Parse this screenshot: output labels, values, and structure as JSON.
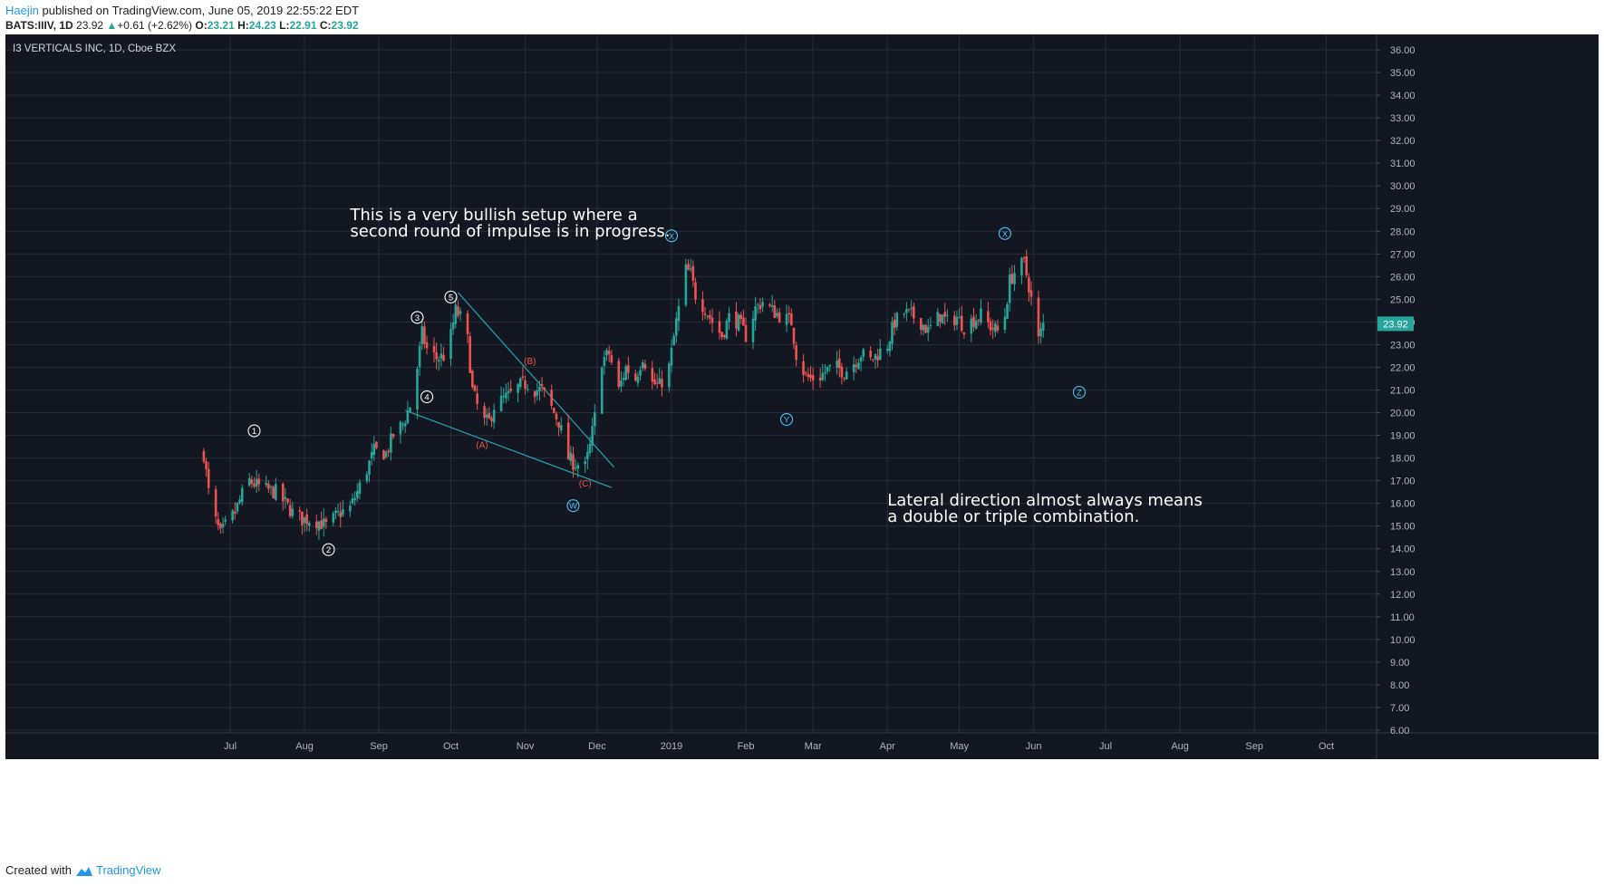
{
  "header": {
    "author": "Haejin",
    "published": "published on TradingView.com, June 05, 2019 22:55:22 EDT",
    "symbol": "BATS:IIIV, 1D",
    "last": "23.92",
    "up_arrow": "▲",
    "change": "+0.61 (+2.62%)",
    "o_label": "O:",
    "o_value": "23.21",
    "h_label": "H:",
    "h_value": "24.23",
    "l_label": "L:",
    "l_value": "22.91",
    "c_label": "C:",
    "c_value": "23.92"
  },
  "footer": {
    "created_with": "Created with",
    "brand": "TradingView"
  },
  "colors": {
    "background": "#131722",
    "grid": "#2a2e39",
    "up": "#26a69a",
    "down": "#ef5350",
    "label_text": "#b2b5be",
    "annotation_text": "#ffffff",
    "trendline": "#26a6b6",
    "wave_white": "#ffffff",
    "wave_red": "#ef5350",
    "wave_cyan": "#4fc3f7"
  },
  "chart_data": {
    "type": "candlestick",
    "instrument_label": "I3 VERTICALS INC, 1D, Cboe BZX",
    "y_axis": {
      "ticks": [
        "6.00",
        "7.00",
        "8.00",
        "9.00",
        "10.00",
        "11.00",
        "12.00",
        "13.00",
        "14.00",
        "15.00",
        "16.00",
        "17.00",
        "18.00",
        "19.00",
        "20.00",
        "21.00",
        "22.00",
        "23.00",
        "24.00",
        "25.00",
        "26.00",
        "27.00",
        "28.00",
        "29.00",
        "30.00",
        "31.00",
        "32.00",
        "33.00",
        "34.00",
        "35.00",
        "36.00"
      ],
      "range": [
        5.6,
        36.6
      ],
      "last_price_label": "23.92"
    },
    "x_axis": {
      "ticks": [
        "Jul",
        "Aug",
        "Sep",
        "Oct",
        "Nov",
        "Dec",
        "2019",
        "Feb",
        "Mar",
        "Apr",
        "May",
        "Jun",
        "Jul",
        "Aug",
        "Sep",
        "Oct"
      ],
      "tick_dates": [
        "2018-07-01",
        "2018-08-01",
        "2018-09-01",
        "2018-10-01",
        "2018-11-01",
        "2018-12-01",
        "2019-01-01",
        "2019-02-01",
        "2019-03-01",
        "2019-04-01",
        "2019-05-01",
        "2019-06-01",
        "2019-07-01",
        "2019-08-01",
        "2019-09-01",
        "2019-10-01"
      ]
    },
    "price_path": [
      [
        "2018-06-20",
        18.2
      ],
      [
        "2018-06-22",
        16.5
      ],
      [
        "2018-06-25",
        15.2
      ],
      [
        "2018-06-27",
        14.6
      ],
      [
        "2018-06-29",
        15.0
      ],
      [
        "2018-07-03",
        15.6
      ],
      [
        "2018-07-06",
        16.4
      ],
      [
        "2018-07-09",
        17.0
      ],
      [
        "2018-07-12",
        16.8
      ],
      [
        "2018-07-16",
        16.6
      ],
      [
        "2018-07-20",
        16.5
      ],
      [
        "2018-07-24",
        16.0
      ],
      [
        "2018-07-27",
        15.6
      ],
      [
        "2018-07-31",
        15.3
      ],
      [
        "2018-08-03",
        15.3
      ],
      [
        "2018-08-07",
        15.2
      ],
      [
        "2018-08-10",
        15.0
      ],
      [
        "2018-08-13",
        15.3
      ],
      [
        "2018-08-16",
        15.6
      ],
      [
        "2018-08-20",
        15.8
      ],
      [
        "2018-08-23",
        16.5
      ],
      [
        "2018-08-27",
        17.5
      ],
      [
        "2018-08-30",
        18.3
      ],
      [
        "2018-09-04",
        18.2
      ],
      [
        "2018-09-07",
        19.0
      ],
      [
        "2018-09-11",
        19.5
      ],
      [
        "2018-09-14",
        20.3
      ],
      [
        "2018-09-17",
        22.0
      ],
      [
        "2018-09-19",
        23.5
      ],
      [
        "2018-09-21",
        22.8
      ],
      [
        "2018-09-25",
        22.4
      ],
      [
        "2018-09-28",
        22.5
      ],
      [
        "2018-10-01",
        23.4
      ],
      [
        "2018-10-03",
        24.5
      ],
      [
        "2018-10-05",
        24.2
      ],
      [
        "2018-10-08",
        23.2
      ],
      [
        "2018-10-10",
        21.0
      ],
      [
        "2018-10-12",
        20.3
      ],
      [
        "2018-10-15",
        19.6
      ],
      [
        "2018-10-17",
        19.6
      ],
      [
        "2018-10-19",
        20.3
      ],
      [
        "2018-10-23",
        20.6
      ],
      [
        "2018-10-26",
        20.8
      ],
      [
        "2018-10-30",
        21.2
      ],
      [
        "2018-11-02",
        21.3
      ],
      [
        "2018-11-05",
        21.0
      ],
      [
        "2018-11-08",
        21.0
      ],
      [
        "2018-11-12",
        20.2
      ],
      [
        "2018-11-15",
        19.6
      ],
      [
        "2018-11-19",
        18.0
      ],
      [
        "2018-11-21",
        17.8
      ],
      [
        "2018-11-26",
        17.6
      ],
      [
        "2018-11-28",
        18.5
      ],
      [
        "2018-11-30",
        19.8
      ],
      [
        "2018-12-03",
        22.3
      ],
      [
        "2018-12-06",
        22.6
      ],
      [
        "2018-12-10",
        21.0
      ],
      [
        "2018-12-13",
        22.0
      ],
      [
        "2018-12-17",
        21.5
      ],
      [
        "2018-12-20",
        22.5
      ],
      [
        "2018-12-24",
        21.3
      ],
      [
        "2018-12-27",
        21.2
      ],
      [
        "2018-12-31",
        22.0
      ],
      [
        "2019-01-03",
        24.0
      ],
      [
        "2019-01-07",
        26.3
      ],
      [
        "2019-01-09",
        26.1
      ],
      [
        "2019-01-11",
        25.2
      ],
      [
        "2019-01-15",
        24.6
      ],
      [
        "2019-01-18",
        24.0
      ],
      [
        "2019-01-22",
        23.4
      ],
      [
        "2019-01-25",
        24.2
      ],
      [
        "2019-01-29",
        24.0
      ],
      [
        "2019-02-01",
        23.4
      ],
      [
        "2019-02-05",
        24.6
      ],
      [
        "2019-02-08",
        24.9
      ],
      [
        "2019-02-12",
        24.5
      ],
      [
        "2019-02-15",
        24.3
      ],
      [
        "2019-02-20",
        24.0
      ],
      [
        "2019-02-22",
        22.6
      ],
      [
        "2019-02-26",
        21.6
      ],
      [
        "2019-02-28",
        21.5
      ],
      [
        "2019-03-04",
        21.6
      ],
      [
        "2019-03-07",
        21.9
      ],
      [
        "2019-03-11",
        22.0
      ],
      [
        "2019-03-14",
        21.8
      ],
      [
        "2019-03-18",
        22.2
      ],
      [
        "2019-03-21",
        22.6
      ],
      [
        "2019-03-25",
        22.3
      ],
      [
        "2019-03-28",
        22.6
      ],
      [
        "2019-04-01",
        23.0
      ],
      [
        "2019-04-04",
        24.0
      ],
      [
        "2019-04-08",
        24.4
      ],
      [
        "2019-04-11",
        24.3
      ],
      [
        "2019-04-15",
        24.0
      ],
      [
        "2019-04-18",
        23.6
      ],
      [
        "2019-04-23",
        24.3
      ],
      [
        "2019-04-26",
        24.0
      ],
      [
        "2019-04-30",
        24.2
      ],
      [
        "2019-05-03",
        23.8
      ],
      [
        "2019-05-07",
        24.1
      ],
      [
        "2019-05-10",
        24.3
      ],
      [
        "2019-05-14",
        23.8
      ],
      [
        "2019-05-17",
        23.6
      ],
      [
        "2019-05-20",
        24.3
      ],
      [
        "2019-05-22",
        25.8
      ],
      [
        "2019-05-24",
        26.2
      ],
      [
        "2019-05-28",
        26.6
      ],
      [
        "2019-05-30",
        25.6
      ],
      [
        "2019-06-03",
        23.2
      ],
      [
        "2019-06-05",
        23.9
      ]
    ],
    "wave_labels": [
      {
        "text": "1",
        "style": "circle-white",
        "date": "2018-07-11",
        "price": 19.2
      },
      {
        "text": "2",
        "style": "circle-white",
        "date": "2018-08-11",
        "price": 13.96
      },
      {
        "text": "3",
        "style": "circle-white",
        "date": "2018-09-17",
        "price": 24.2
      },
      {
        "text": "4",
        "style": "circle-white",
        "date": "2018-09-21",
        "price": 20.7
      },
      {
        "text": "5",
        "style": "circle-white",
        "date": "2018-10-01",
        "price": 25.1
      },
      {
        "text": "(A)",
        "style": "text-red",
        "date": "2018-10-14",
        "price": 18.6
      },
      {
        "text": "(B)",
        "style": "text-red",
        "date": "2018-11-03",
        "price": 22.3
      },
      {
        "text": "(C)",
        "style": "text-red",
        "date": "2018-11-26",
        "price": 16.9
      },
      {
        "text": "W",
        "style": "circle-cyan",
        "date": "2018-11-21",
        "price": 15.9
      },
      {
        "text": "X",
        "style": "circle-cyan",
        "date": "2019-01-01",
        "price": 27.8
      },
      {
        "text": "Y",
        "style": "circle-cyan",
        "date": "2019-02-18",
        "price": 19.7
      },
      {
        "text": "X",
        "style": "circle-cyan",
        "date": "2019-05-20",
        "price": 27.9
      },
      {
        "text": "Z",
        "style": "circle-cyan",
        "date": "2019-06-20",
        "price": 20.9
      }
    ],
    "trendlines": [
      {
        "from": {
          "date": "2018-10-04",
          "price": 25.3
        },
        "to": {
          "date": "2018-12-08",
          "price": 17.6
        }
      },
      {
        "from": {
          "date": "2018-09-12",
          "price": 20.1
        },
        "to": {
          "date": "2018-12-07",
          "price": 16.7
        }
      }
    ],
    "annotations": [
      {
        "lines": [
          "This is a very bullish setup where a",
          "second round of impulse is in progress."
        ],
        "date": "2018-08-20",
        "price": 28.5
      },
      {
        "lines": [
          "Lateral direction almost always means",
          "a double or triple combination."
        ],
        "date": "2019-04-01",
        "price": 15.9
      }
    ]
  }
}
